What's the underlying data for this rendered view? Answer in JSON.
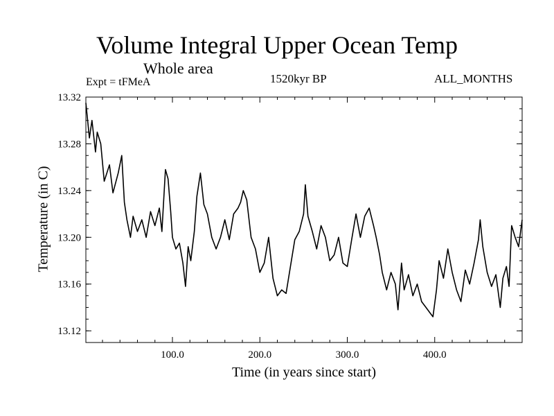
{
  "header": {
    "title": "Volume Integral Upper Ocean Temp",
    "subtitle": "Whole area",
    "experiment": "Expt = tFMeA",
    "period": "1520kyr BP",
    "months": "ALL_MONTHS"
  },
  "chart_data": {
    "type": "line",
    "title": "Volume Integral Upper Ocean Temp",
    "xlabel": "Time (in years since start)",
    "ylabel": "Temperature (in C)",
    "xlim": [
      1,
      500
    ],
    "ylim": [
      13.11,
      13.32
    ],
    "x_ticks": [
      100,
      200,
      300,
      400
    ],
    "x_tick_labels": [
      "100.0",
      "200.0",
      "300.0",
      "400.0"
    ],
    "y_ticks": [
      13.12,
      13.16,
      13.2,
      13.24,
      13.28,
      13.32
    ],
    "y_tick_labels": [
      "13.12",
      "13.16",
      "13.20",
      "13.24",
      "13.28",
      "13.32"
    ],
    "grid": false,
    "series": [
      {
        "name": "Temperature",
        "x": [
          1,
          5,
          8,
          12,
          14,
          18,
          22,
          28,
          32,
          38,
          42,
          45,
          48,
          52,
          55,
          60,
          65,
          70,
          75,
          80,
          85,
          88,
          92,
          95,
          98,
          100,
          104,
          108,
          112,
          115,
          118,
          121,
          125,
          128,
          132,
          136,
          140,
          145,
          150,
          155,
          160,
          165,
          170,
          175,
          178,
          181,
          185,
          190,
          195,
          200,
          205,
          210,
          215,
          220,
          225,
          230,
          235,
          240,
          245,
          250,
          252,
          255,
          260,
          265,
          270,
          275,
          280,
          285,
          290,
          295,
          300,
          305,
          310,
          315,
          320,
          325,
          330,
          333,
          337,
          340,
          345,
          350,
          355,
          358,
          362,
          365,
          370,
          375,
          380,
          385,
          390,
          395,
          398,
          402,
          405,
          410,
          415,
          420,
          425,
          430,
          435,
          440,
          445,
          450,
          452,
          455,
          460,
          465,
          470,
          475,
          478,
          482,
          485,
          488,
          492,
          496,
          500
        ],
        "values": [
          13.315,
          13.285,
          13.3,
          13.273,
          13.29,
          13.28,
          13.248,
          13.262,
          13.238,
          13.255,
          13.27,
          13.23,
          13.215,
          13.2,
          13.218,
          13.205,
          13.215,
          13.2,
          13.222,
          13.21,
          13.225,
          13.205,
          13.258,
          13.25,
          13.222,
          13.2,
          13.19,
          13.195,
          13.178,
          13.158,
          13.192,
          13.18,
          13.205,
          13.235,
          13.255,
          13.228,
          13.22,
          13.2,
          13.19,
          13.2,
          13.215,
          13.198,
          13.22,
          13.225,
          13.23,
          13.24,
          13.232,
          13.2,
          13.19,
          13.17,
          13.178,
          13.2,
          13.165,
          13.15,
          13.155,
          13.152,
          13.175,
          13.198,
          13.205,
          13.22,
          13.245,
          13.218,
          13.205,
          13.19,
          13.21,
          13.2,
          13.18,
          13.185,
          13.2,
          13.178,
          13.175,
          13.198,
          13.22,
          13.2,
          13.218,
          13.225,
          13.21,
          13.2,
          13.185,
          13.17,
          13.155,
          13.17,
          13.16,
          13.138,
          13.178,
          13.155,
          13.168,
          13.15,
          13.16,
          13.145,
          13.14,
          13.135,
          13.132,
          13.155,
          13.18,
          13.165,
          13.19,
          13.17,
          13.155,
          13.145,
          13.172,
          13.16,
          13.178,
          13.198,
          13.215,
          13.192,
          13.17,
          13.158,
          13.168,
          13.14,
          13.165,
          13.175,
          13.158,
          13.21,
          13.2,
          13.192,
          13.215
        ]
      }
    ]
  }
}
